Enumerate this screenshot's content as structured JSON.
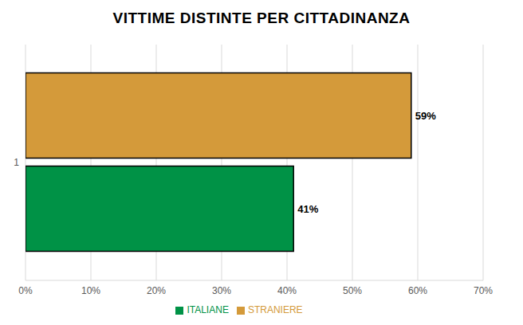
{
  "chart_data": {
    "type": "bar",
    "title": "VITTIME DISTINTE PER CITTADINANZA",
    "orientation": "horizontal",
    "categories": [
      "1"
    ],
    "series": [
      {
        "name": "STRANIERE",
        "color": "#d49a3a",
        "values": [
          59
        ],
        "value_labels": [
          "59%"
        ]
      },
      {
        "name": "ITALIANE",
        "color": "#009246",
        "values": [
          41
        ],
        "value_labels": [
          "41%"
        ]
      }
    ],
    "xlim": [
      0,
      70
    ],
    "xticks": [
      {
        "value": 0,
        "label": "0%"
      },
      {
        "value": 10,
        "label": "10%"
      },
      {
        "value": 20,
        "label": "20%"
      },
      {
        "value": 30,
        "label": "30%"
      },
      {
        "value": 40,
        "label": "40%"
      },
      {
        "value": 50,
        "label": "50%"
      },
      {
        "value": 60,
        "label": "60%"
      },
      {
        "value": 70,
        "label": "70%"
      }
    ],
    "grid": true,
    "data_labels": true,
    "legend": "bottom"
  }
}
